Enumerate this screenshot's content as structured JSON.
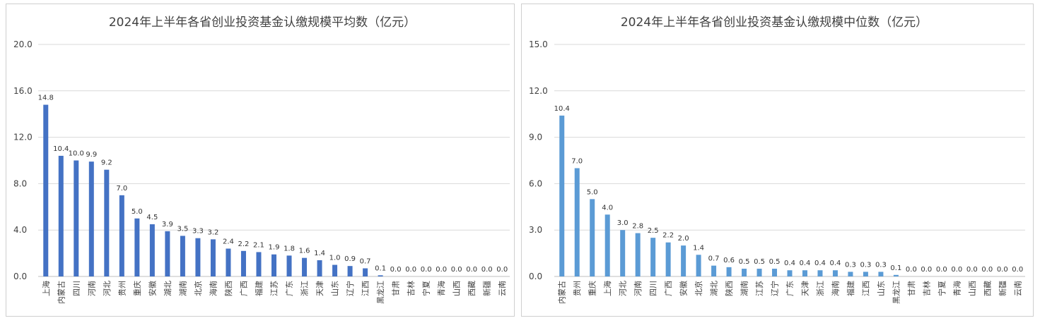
{
  "chart_data": [
    {
      "type": "bar",
      "title": "2024年上半年各省创业投资基金认缴规模平均数（亿元）",
      "xlabel": "",
      "ylabel": "",
      "ylim": [
        0,
        20
      ],
      "y_ticks": [
        "0.0",
        "4.0",
        "8.0",
        "12.0",
        "16.0",
        "20.0"
      ],
      "grid": true,
      "legend": "none",
      "bar_color": "#4472c4",
      "categories": [
        "上海",
        "内蒙古",
        "四川",
        "河南",
        "河北",
        "贵州",
        "重庆",
        "安徽",
        "湖北",
        "湖南",
        "北京",
        "海南",
        "陕西",
        "广西",
        "福建",
        "江苏",
        "广东",
        "浙江",
        "天津",
        "山东",
        "辽宁",
        "江西",
        "黑龙江",
        "甘肃",
        "吉林",
        "宁夏",
        "青海",
        "山西",
        "西藏",
        "新疆",
        "云南"
      ],
      "values": [
        14.8,
        10.4,
        10.0,
        9.9,
        9.2,
        7.0,
        5.0,
        4.5,
        3.9,
        3.5,
        3.3,
        3.2,
        2.4,
        2.2,
        2.1,
        1.9,
        1.8,
        1.6,
        1.4,
        1.0,
        0.9,
        0.7,
        0.1,
        0.0,
        0.0,
        0.0,
        0.0,
        0.0,
        0.0,
        0.0,
        0.0
      ],
      "value_labels": [
        "14.8",
        "10.4",
        "10.0",
        "9.9",
        "9.2",
        "7.0",
        "5.0",
        "4.5",
        "3.9",
        "3.5",
        "3.3",
        "3.2",
        "2.4",
        "2.2",
        "2.1",
        "1.9",
        "1.8",
        "1.6",
        "1.4",
        "1.0",
        "0.9",
        "0.7",
        "0.1",
        "0.0",
        "0.0",
        "0.0",
        "0.0",
        "0.0",
        "0.0",
        "0.0",
        "0.0"
      ]
    },
    {
      "type": "bar",
      "title": "2024年上半年各省创业投资基金认缴规模中位数（亿元）",
      "xlabel": "",
      "ylabel": "",
      "ylim": [
        0,
        15
      ],
      "y_ticks": [
        "0.0",
        "3.0",
        "6.0",
        "9.0",
        "12.0",
        "15.0"
      ],
      "grid": true,
      "legend": "none",
      "bar_color": "#5b9bd5",
      "categories": [
        "内蒙古",
        "贵州",
        "重庆",
        "上海",
        "河北",
        "河南",
        "四川",
        "广西",
        "安徽",
        "北京",
        "湖北",
        "陕西",
        "湖南",
        "江苏",
        "辽宁",
        "广东",
        "天津",
        "浙江",
        "海南",
        "福建",
        "江西",
        "山东",
        "黑龙江",
        "甘肃",
        "吉林",
        "宁夏",
        "青海",
        "山西",
        "西藏",
        "新疆",
        "云南"
      ],
      "values": [
        10.4,
        7.0,
        5.0,
        4.0,
        3.0,
        2.8,
        2.5,
        2.2,
        2.0,
        1.4,
        0.7,
        0.6,
        0.5,
        0.5,
        0.5,
        0.4,
        0.4,
        0.4,
        0.4,
        0.3,
        0.3,
        0.3,
        0.1,
        0.0,
        0.0,
        0.0,
        0.0,
        0.0,
        0.0,
        0.0,
        0.0
      ],
      "value_labels": [
        "10.4",
        "7.0",
        "5.0",
        "4.0",
        "3.0",
        "2.8",
        "2.5",
        "2.2",
        "2.0",
        "1.4",
        "0.7",
        "0.6",
        "0.5",
        "0.5",
        "0.5",
        "0.4",
        "0.4",
        "0.4",
        "0.4",
        "0.3",
        "0.3",
        "0.3",
        "0.1",
        "0.0",
        "0.0",
        "0.0",
        "0.0",
        "0.0",
        "0.0",
        "0.0",
        "0.0"
      ]
    }
  ]
}
